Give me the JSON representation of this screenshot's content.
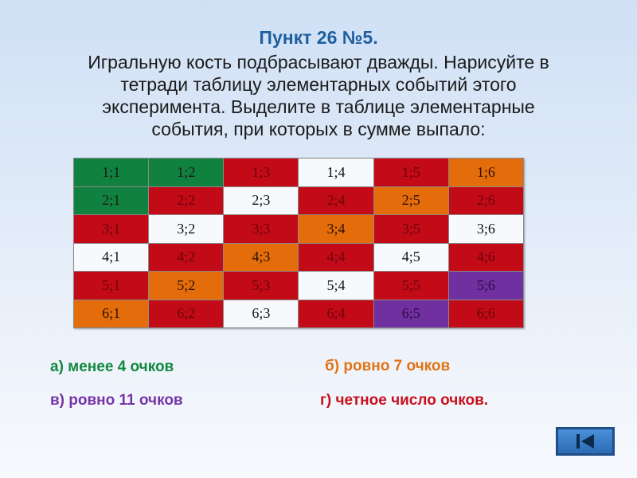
{
  "title": "Пункт 26 №5.",
  "body_lines": [
    "Игральную кость подбрасывают дважды. Нарисуйте в",
    "тетради таблицу элементарных событий этого",
    "эксперимента. Выделите в таблице элементарные",
    "события, при которых в сумме выпало:"
  ],
  "table": {
    "rows": [
      [
        {
          "text": "1;1",
          "color": "green"
        },
        {
          "text": "1;2",
          "color": "green"
        },
        {
          "text": "1;3",
          "color": "red"
        },
        {
          "text": "1;4",
          "color": "white"
        },
        {
          "text": "1;5",
          "color": "red"
        },
        {
          "text": "1;6",
          "color": "orange"
        }
      ],
      [
        {
          "text": "2;1",
          "color": "green"
        },
        {
          "text": "2;2",
          "color": "red"
        },
        {
          "text": "2;3",
          "color": "white"
        },
        {
          "text": "2;4",
          "color": "red"
        },
        {
          "text": "2;5",
          "color": "orange"
        },
        {
          "text": "2;6",
          "color": "red"
        }
      ],
      [
        {
          "text": "3;1",
          "color": "red"
        },
        {
          "text": "3;2",
          "color": "white"
        },
        {
          "text": "3;3",
          "color": "red"
        },
        {
          "text": "3;4",
          "color": "orange"
        },
        {
          "text": "3;5",
          "color": "red"
        },
        {
          "text": "3;6",
          "color": "white"
        }
      ],
      [
        {
          "text": "4;1",
          "color": "white"
        },
        {
          "text": "4;2",
          "color": "red"
        },
        {
          "text": "4;3",
          "color": "orange"
        },
        {
          "text": "4;4",
          "color": "red"
        },
        {
          "text": "4;5",
          "color": "white"
        },
        {
          "text": "4;6",
          "color": "red"
        }
      ],
      [
        {
          "text": "5;1",
          "color": "red"
        },
        {
          "text": "5;2",
          "color": "orange"
        },
        {
          "text": "5;3",
          "color": "red"
        },
        {
          "text": "5;4",
          "color": "white"
        },
        {
          "text": "5;5",
          "color": "red"
        },
        {
          "text": "5;6",
          "color": "purple"
        }
      ],
      [
        {
          "text": "6;1",
          "color": "orange"
        },
        {
          "text": "6;2",
          "color": "red"
        },
        {
          "text": "6;3",
          "color": "white"
        },
        {
          "text": "6;4",
          "color": "red"
        },
        {
          "text": "6;5",
          "color": "purple"
        },
        {
          "text": "6;6",
          "color": "red"
        }
      ]
    ]
  },
  "tasks": {
    "a": "а) менее 4 очков",
    "b": "б) ровно 7 очков",
    "c": "в) ровно 11 очков",
    "d": "г) четное число очков."
  },
  "colors": {
    "green": "#11813f",
    "red": "#c30a17",
    "white": "#f7f9fd",
    "orange": "#e46c0a",
    "purple": "#7030a0",
    "title": "#1f5f9e"
  },
  "nav": {
    "icon": "skip-back-icon"
  }
}
